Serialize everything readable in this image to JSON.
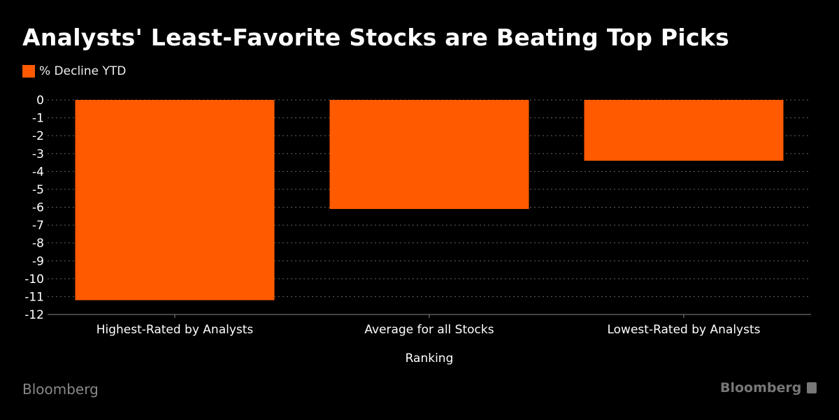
{
  "chart_data": {
    "type": "bar",
    "title": "Analysts' Least-Favorite Stocks are Beating Top Picks",
    "legend": [
      "% Decline YTD"
    ],
    "legend_placement": "top-left",
    "categories": [
      "Highest-Rated by Analysts",
      "Average for all Stocks",
      "Lowest-Rated by Analysts"
    ],
    "series": [
      {
        "name": "% Decline YTD",
        "values": [
          -11.2,
          -6.1,
          -3.4
        ],
        "color": "#ff5a00"
      }
    ],
    "xlabel": "Ranking",
    "ylabel": "",
    "ylim": [
      -12,
      0
    ],
    "yticks": [
      0,
      -1,
      -2,
      -3,
      -4,
      -5,
      -6,
      -7,
      -8,
      -9,
      -10,
      -11,
      -12
    ],
    "grid": true
  },
  "footer": {
    "source": "Bloomberg",
    "logo": "Bloomberg"
  }
}
